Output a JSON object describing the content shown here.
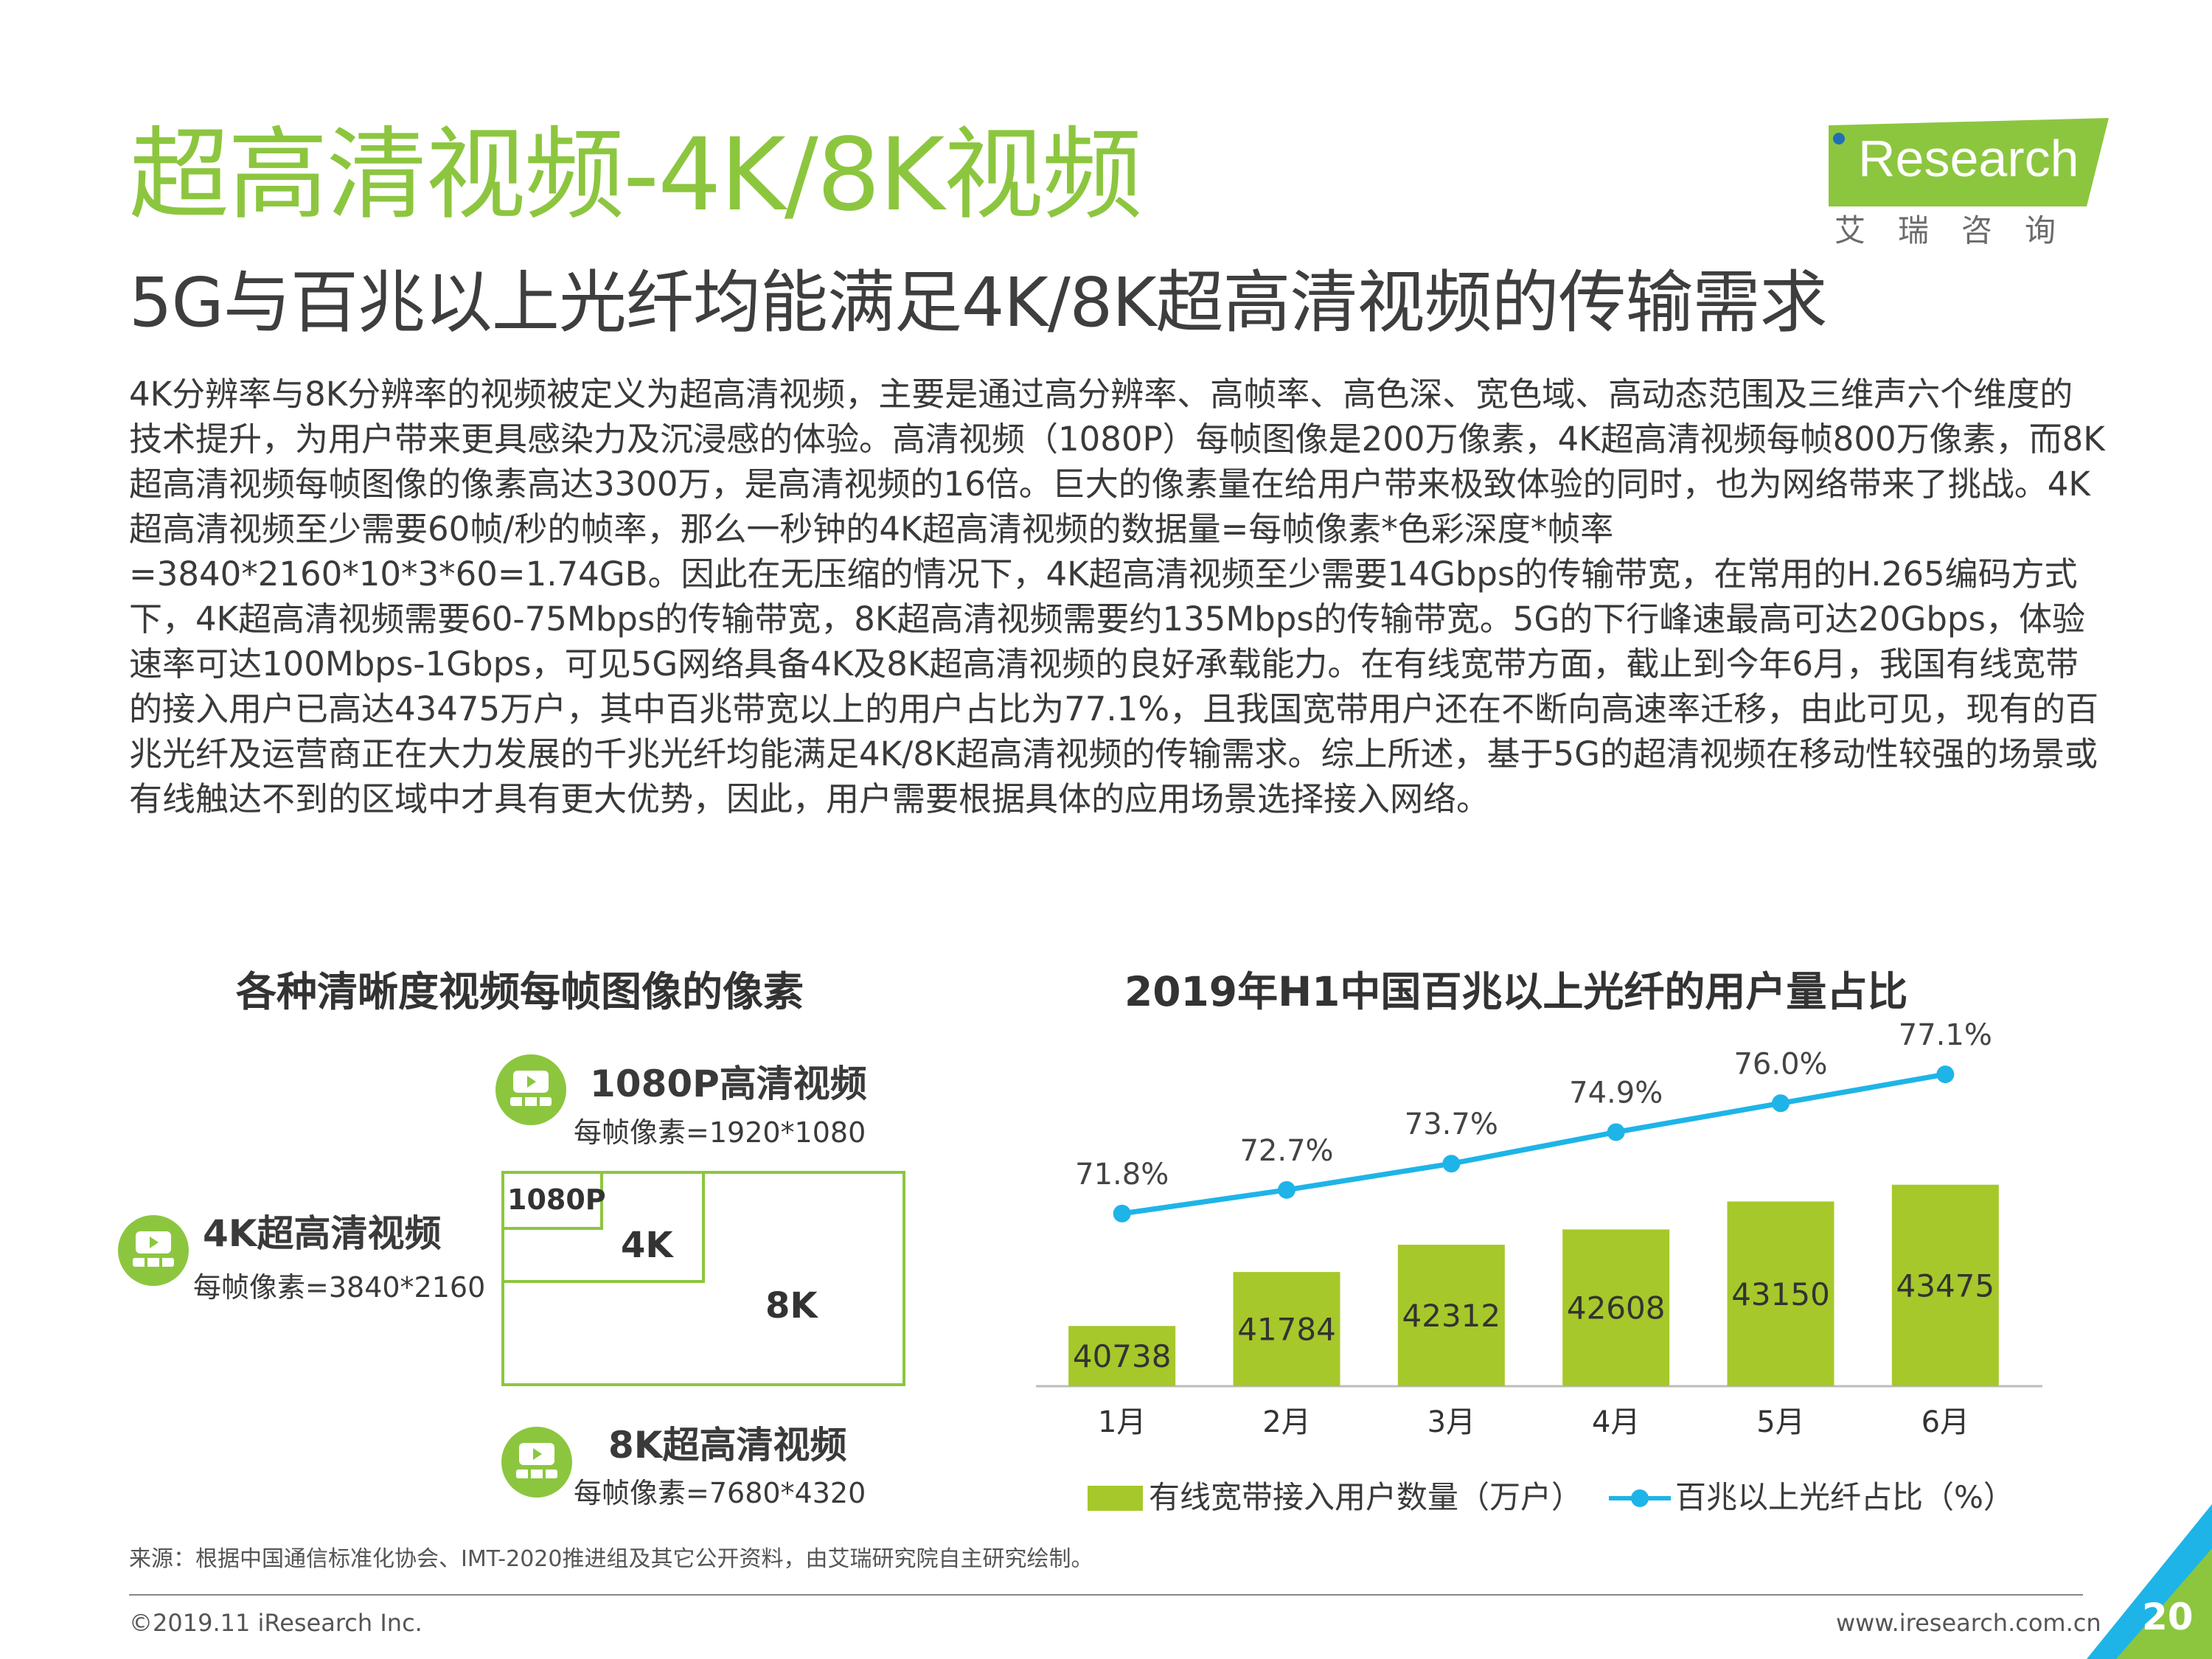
{
  "header": {
    "title": "超高清视频-4K/8K视频",
    "subtitle": "5G与百兆以上光纤均能满足4K/8K超高清视频的传输需求"
  },
  "logo": {
    "text": "Research",
    "chinese": "艾瑞咨询",
    "brand_color": "#8cc63f"
  },
  "body_text": "4K分辨率与8K分辨率的视频被定义为超高清视频，主要是通过高分辨率、高帧率、高色深、宽色域、高动态范围及三维声六个维度的技术提升，为用户带来更具感染力及沉浸感的体验。高清视频（1080P）每帧图像是200万像素，4K超高清视频每帧800万像素，而8K超高清视频每帧图像的像素高达3300万，是高清视频的16倍。巨大的像素量在给用户带来极致体验的同时，也为网络带来了挑战。4K超高清视频至少需要60帧/秒的帧率，那么一秒钟的4K超高清视频的数据量=每帧像素*色彩深度*帧率=3840*2160*10*3*60=1.74GB。因此在无压缩的情况下，4K超高清视频至少需要14Gbps的传输带宽，在常用的H.265编码方式下，4K超高清视频需要60-75Mbps的传输带宽，8K超高清视频需要约135Mbps的传输带宽。5G的下行峰速最高可达20Gbps，体验速率可达100Mbps-1Gbps，可见5G网络具备4K及8K超高清视频的良好承载能力。在有线宽带方面，截止到今年6月，我国有线宽带的接入用户已高达43475万户，其中百兆带宽以上的用户占比为77.1%，且我国宽带用户还在不断向高速率迁移，由此可见，现有的百兆光纤及运营商正在大力发展的千兆光纤均能满足4K/8K超高清视频的传输需求。综上所述，基于5G的超清视频在移动性较强的场景或有线触达不到的区域中才具有更大优势，因此，用户需要根据具体的应用场景选择接入网络。",
  "left_figure": {
    "title": "各种清晰度视频每帧图像的像素",
    "res_1080": {
      "title": "1080P高清视频",
      "sub": "每帧像素=1920*1080",
      "box": "1080P"
    },
    "res_4k": {
      "title": "4K超高清视频",
      "sub": "每帧像素=3840*2160",
      "box": "4K"
    },
    "res_8k": {
      "title": "8K超高清视频",
      "sub": "每帧像素=7680*4320",
      "box": "8K"
    }
  },
  "chart_data": {
    "type": "bar+line",
    "title": "2019年H1中国百兆以上光纤的用户量占比",
    "categories": [
      "1月",
      "2月",
      "3月",
      "4月",
      "5月",
      "6月"
    ],
    "series": [
      {
        "name": "有线宽带接入用户数量（万户）",
        "type": "bar",
        "color": "#a6c82a",
        "values": [
          40738,
          41784,
          42312,
          42608,
          43150,
          43475
        ]
      },
      {
        "name": "百兆以上光纤占比（%）",
        "type": "line",
        "color": "#1eb4e8",
        "values": [
          71.8,
          72.7,
          73.7,
          74.9,
          76.0,
          77.1
        ],
        "labels": [
          "71.8%",
          "72.7%",
          "73.7%",
          "74.9%",
          "76.0%",
          "77.1%"
        ]
      }
    ],
    "legend_position": "bottom"
  },
  "footer": {
    "source": "来源：根据中国通信标准化协会、IMT-2020推进组及其它公开资料，由艾瑞研究院自主研究绘制。",
    "copyright": "©2019.11 iResearch Inc.",
    "site": "www.iresearch.com.cn",
    "page": "20",
    "accent_blue": "#1eb4e8",
    "accent_green": "#8cc63f"
  }
}
